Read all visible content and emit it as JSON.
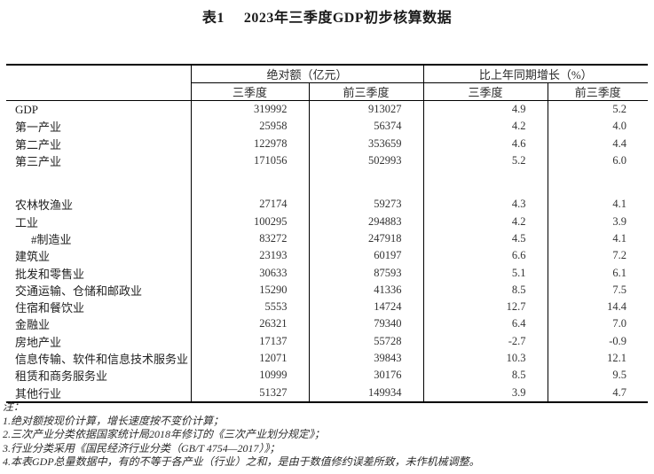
{
  "title": {
    "number": "表1",
    "text": "2023年三季度GDP初步核算数据"
  },
  "table": {
    "col_groups": [
      {
        "label": "绝对额（亿元）"
      },
      {
        "label": "比上年同期增长（%）"
      }
    ],
    "sub_headers": [
      "三季度",
      "前三季度",
      "三季度",
      "前三季度"
    ],
    "sections": [
      {
        "rows": [
          {
            "label": "GDP",
            "indent": false,
            "values": [
              "319992",
              "913027",
              "4.9",
              "5.2"
            ]
          },
          {
            "label": "第一产业",
            "indent": false,
            "values": [
              "25958",
              "56374",
              "4.2",
              "4.0"
            ]
          },
          {
            "label": "第二产业",
            "indent": false,
            "values": [
              "122978",
              "353659",
              "4.6",
              "4.4"
            ]
          },
          {
            "label": "第三产业",
            "indent": false,
            "values": [
              "171056",
              "502993",
              "5.2",
              "6.0"
            ]
          }
        ]
      },
      {
        "rows": [
          {
            "label": "农林牧渔业",
            "indent": false,
            "values": [
              "27174",
              "59273",
              "4.3",
              "4.1"
            ]
          },
          {
            "label": "工业",
            "indent": false,
            "values": [
              "100295",
              "294883",
              "4.2",
              "3.9"
            ]
          },
          {
            "label": "#制造业",
            "indent": true,
            "values": [
              "83272",
              "247918",
              "4.5",
              "4.1"
            ]
          },
          {
            "label": "建筑业",
            "indent": false,
            "values": [
              "23193",
              "60197",
              "6.6",
              "7.2"
            ]
          },
          {
            "label": "批发和零售业",
            "indent": false,
            "values": [
              "30633",
              "87593",
              "5.1",
              "6.1"
            ]
          },
          {
            "label": "交通运输、仓储和邮政业",
            "indent": false,
            "values": [
              "15290",
              "41336",
              "8.5",
              "7.5"
            ]
          },
          {
            "label": "住宿和餐饮业",
            "indent": false,
            "values": [
              "5553",
              "14724",
              "12.7",
              "14.4"
            ]
          },
          {
            "label": "金融业",
            "indent": false,
            "values": [
              "26321",
              "79340",
              "6.4",
              "7.0"
            ]
          },
          {
            "label": "房地产业",
            "indent": false,
            "values": [
              "17137",
              "55728",
              "-2.7",
              "-0.9"
            ]
          },
          {
            "label": "信息传输、软件和信息技术服务业",
            "indent": false,
            "values": [
              "12071",
              "39843",
              "10.3",
              "12.1"
            ]
          },
          {
            "label": "租赁和商务服务业",
            "indent": false,
            "values": [
              "10999",
              "30176",
              "8.5",
              "9.5"
            ]
          },
          {
            "label": "其他行业",
            "indent": false,
            "values": [
              "51327",
              "149934",
              "3.9",
              "4.7"
            ]
          }
        ]
      }
    ]
  },
  "notes": {
    "label": "注：",
    "items": [
      "1.绝对额按现价计算，增长速度按不变价计算；",
      "2.三次产业分类依据国家统计局2018年修订的《三次产业划分规定》；",
      "3.行业分类采用《国民经济行业分类（GB/T 4754—2017）》；",
      "4.本表GDP总量数据中，有的不等于各产业（行业）之和，是由于数值修约误差所致，未作机械调整。"
    ]
  }
}
